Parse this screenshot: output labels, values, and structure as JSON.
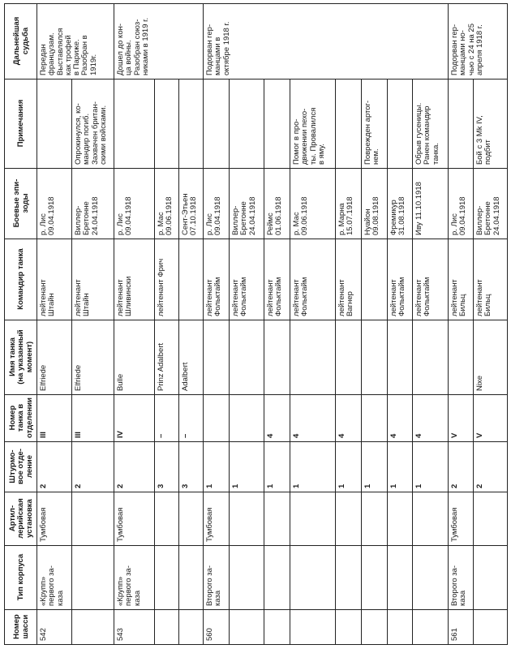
{
  "headers": [
    "Номер\nшасси",
    "Тип корпуса",
    "Артил-\nлерийская\nустановка",
    "Штурмо-\nвое отде-\nление",
    "Номер\nтанка в\nотделении",
    "Имя танка\n(на указанный\nмомент)",
    "Командир танка",
    "Боевые эпи-\nзоды",
    "Примечания",
    "Дальнейшая\nсудьба"
  ],
  "rows": [
    {
      "chassis": "542",
      "hull": "«Крупп»\nпервого за-\nказа",
      "gun": "Тумбовая",
      "squad": "2",
      "num": "III",
      "name": "Elfriede",
      "commander": "лейтенант\nШтайн",
      "battle": "р. Лис\n09.04.1918",
      "notes": "",
      "fate": "Передан\nфранцузам.\nВыставлялся\nкак трофей\nв Париже.\nРазобран в\n1919г."
    },
    {
      "chassis": "",
      "hull": "",
      "gun": "",
      "squad": "2",
      "num": "III",
      "name": "Elfriede",
      "commander": "лейтенант\nШтайн",
      "battle": "Виллер-\nБретонне\n24.04.1918",
      "notes": "Опрокинулся, ко-\nмандир погиб.\nЗахвачен британ-\nскими войсками."
    },
    {
      "chassis": "543",
      "hull": "«Крупп»\nпервого за-\nказа",
      "gun": "Тумбовая",
      "squad": "2",
      "num": "IV",
      "name": "Bulle",
      "commander": "лейтенант\nШливински",
      "battle": "р. Лис\n09.04.1918",
      "notes": "",
      "fate": "Дошел до кон-\nца войны.\nРазобран союз-\nниками в 1919 г."
    },
    {
      "chassis": "",
      "hull": "",
      "gun": "",
      "squad": "3",
      "num": "–",
      "name": "Prinz Adalbert",
      "commander": "лейтенант Фрич",
      "battle": "р. Мас\n09.06.1918",
      "notes": ""
    },
    {
      "chassis": "",
      "hull": "",
      "gun": "",
      "squad": "3",
      "num": "–",
      "name": "Adalbert",
      "commander": "",
      "battle": "Сент-Этьен\n07.10.1918",
      "notes": ""
    },
    {
      "chassis": "560",
      "hull": "Второго за-\nказа",
      "gun": "Тумбовая",
      "squad": "1",
      "num": "",
      "name": "",
      "commander": "лейтенант\nФольктайм",
      "battle": "р. Лис\n09.04.1918",
      "notes": "",
      "fate": "Подорван гер-\nманцами в\nоктябре 1918 г."
    },
    {
      "chassis": "",
      "hull": "",
      "gun": "",
      "squad": "1",
      "num": "",
      "name": "",
      "commander": "лейтенант\nФольктайм",
      "battle": "Виллер-\nБретонне\n24.04.1918",
      "notes": ""
    },
    {
      "chassis": "",
      "hull": "",
      "gun": "",
      "squad": "1",
      "num": "4",
      "name": "",
      "commander": "лейтенант\nФольктайм",
      "battle": "Реймс\n01.06.1918",
      "notes": ""
    },
    {
      "chassis": "",
      "hull": "",
      "gun": "",
      "squad": "1",
      "num": "4",
      "name": "",
      "commander": "лейтенант\nФольктайм",
      "battle": "р. Мас\n09.06.1918",
      "notes": "Помог в про-\nдвижении пехо-\nты. Провалился\nв яму."
    },
    {
      "chassis": "",
      "hull": "",
      "gun": "",
      "squad": "1",
      "num": "4",
      "name": "",
      "commander": "лейтенант\nВагнер",
      "battle": "р. Марна\n15.07.1918",
      "notes": ""
    },
    {
      "chassis": "",
      "hull": "",
      "gun": "",
      "squad": "1",
      "num": "",
      "name": "",
      "commander": "",
      "battle": "Нуайон\n09.08.1918",
      "notes": "Поврежден артог-\nнем."
    },
    {
      "chassis": "",
      "hull": "",
      "gun": "",
      "squad": "1",
      "num": "4",
      "name": "",
      "commander": "лейтенант\nФольктайм",
      "battle": "Фремикур\n31.08.1918",
      "notes": ""
    },
    {
      "chassis": "",
      "hull": "",
      "gun": "",
      "squad": "1",
      "num": "4",
      "name": "",
      "commander": "лейтенант\nФольктайм",
      "battle": "Иву 11.10.1918",
      "notes": "Обрыв гусеницы.\nРанен командир\nтанка."
    },
    {
      "chassis": "561",
      "hull": "Второго за-\nказа",
      "gun": "Тумбовая",
      "squad": "2",
      "num": "V",
      "name": "",
      "commander": "лейтенант\nБильц",
      "battle": "р. Лис\n09.04.1918",
      "notes": "",
      "fate": "Подорван гер-\nманцами но-\nчью с 24 на 25\nапреля 1918 г."
    },
    {
      "chassis": "",
      "hull": "",
      "gun": "",
      "squad": "2",
      "num": "V",
      "name": "Nixe",
      "commander": "лейтенант\nБильц",
      "battle": "Виллер-\nБретонне\n24.04.1918",
      "notes": "Бой с 3 Mk IV,\nподбит"
    }
  ]
}
